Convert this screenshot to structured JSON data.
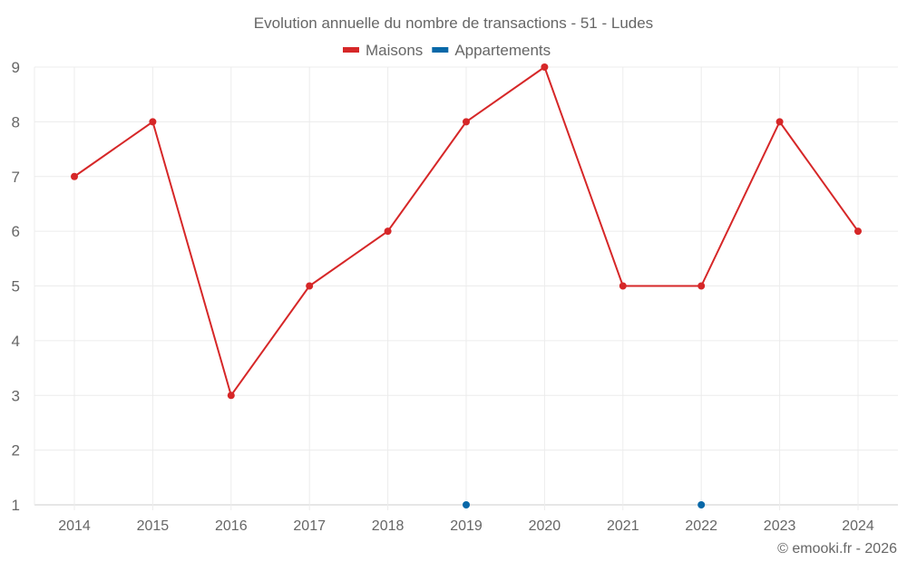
{
  "chart_data": {
    "type": "line",
    "title": "Evolution annuelle du nombre de transactions - 51 - Ludes",
    "xlabel": "",
    "ylabel": "",
    "categories": [
      "2014",
      "2015",
      "2016",
      "2017",
      "2018",
      "2019",
      "2020",
      "2021",
      "2022",
      "2023",
      "2024"
    ],
    "ylim": [
      1,
      9
    ],
    "yticks": [
      "1",
      "2",
      "3",
      "4",
      "5",
      "6",
      "7",
      "8",
      "9"
    ],
    "grid": true,
    "legend_position": "top-center",
    "series": [
      {
        "name": "Maisons",
        "color": "#d62728",
        "values": [
          7,
          8,
          3,
          5,
          6,
          8,
          9,
          5,
          5,
          8,
          6
        ]
      },
      {
        "name": "Appartements",
        "color": "#0868a8",
        "values": [
          null,
          null,
          null,
          null,
          null,
          1,
          null,
          null,
          1,
          null,
          null
        ]
      }
    ],
    "credit": "© emooki.fr - 2026"
  }
}
